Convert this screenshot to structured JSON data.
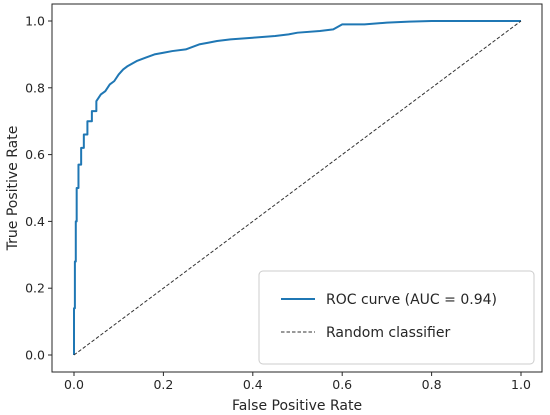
{
  "chart_data": {
    "type": "line",
    "title": "",
    "xlabel": "False Positive Rate",
    "ylabel": "True Positive Rate",
    "xlim": [
      0.0,
      1.0
    ],
    "ylim": [
      0.0,
      1.0
    ],
    "xticks": [
      "0.0",
      "0.2",
      "0.4",
      "0.6",
      "0.8",
      "1.0"
    ],
    "yticks": [
      "0.0",
      "0.2",
      "0.4",
      "0.6",
      "0.8",
      "1.0"
    ],
    "grid": false,
    "legend_position": "lower-right",
    "series": [
      {
        "name": "ROC curve (AUC = 0.94)",
        "color": "#1f77b4",
        "style": "solid",
        "x": [
          0.0,
          0.0,
          0.002,
          0.002,
          0.004,
          0.004,
          0.006,
          0.006,
          0.01,
          0.01,
          0.016,
          0.016,
          0.022,
          0.022,
          0.03,
          0.03,
          0.04,
          0.04,
          0.05,
          0.05,
          0.06,
          0.07,
          0.08,
          0.09,
          0.1,
          0.11,
          0.12,
          0.14,
          0.16,
          0.18,
          0.2,
          0.22,
          0.25,
          0.28,
          0.3,
          0.32,
          0.35,
          0.4,
          0.45,
          0.48,
          0.5,
          0.55,
          0.58,
          0.6,
          0.65,
          0.7,
          0.75,
          0.8,
          0.9,
          1.0
        ],
        "y": [
          0.0,
          0.14,
          0.14,
          0.28,
          0.28,
          0.4,
          0.4,
          0.5,
          0.5,
          0.57,
          0.57,
          0.62,
          0.62,
          0.66,
          0.66,
          0.7,
          0.7,
          0.73,
          0.73,
          0.76,
          0.78,
          0.79,
          0.81,
          0.82,
          0.84,
          0.855,
          0.865,
          0.88,
          0.89,
          0.9,
          0.905,
          0.91,
          0.915,
          0.93,
          0.935,
          0.94,
          0.945,
          0.95,
          0.955,
          0.96,
          0.965,
          0.97,
          0.975,
          0.99,
          0.99,
          0.995,
          0.998,
          1.0,
          1.0,
          1.0
        ]
      },
      {
        "name": "Random classifier",
        "color": "#333333",
        "style": "dashed",
        "x": [
          0.0,
          1.0
        ],
        "y": [
          0.0,
          1.0
        ]
      }
    ]
  }
}
